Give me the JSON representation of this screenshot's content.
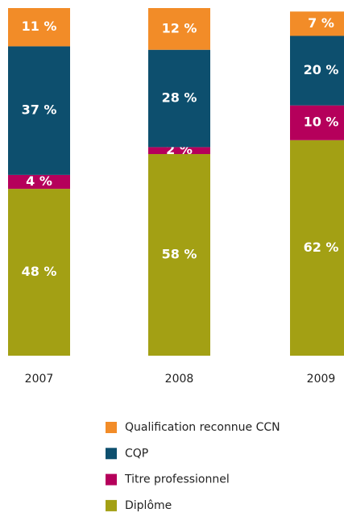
{
  "chart_data": {
    "type": "stacked_bar",
    "categories": [
      "2007",
      "2008",
      "2009"
    ],
    "ylim": [
      0,
      100
    ],
    "series": [
      {
        "name": "Qualification reconnue CCN",
        "color": "#f28c28",
        "values": [
          11,
          12,
          7
        ],
        "value_labels": [
          "11 %",
          "12 %",
          "7 %"
        ]
      },
      {
        "name": "CQP",
        "color": "#0d4f6e",
        "values": [
          37,
          28,
          20
        ],
        "value_labels": [
          "37 %",
          "28 %",
          "20 %"
        ]
      },
      {
        "name": "Titre professionnel",
        "color": "#b5005b",
        "values": [
          4,
          2,
          10
        ],
        "value_labels": [
          "4 %",
          "2 %",
          "10 %"
        ]
      },
      {
        "name": "Diplôme",
        "color": "#a3a014",
        "values": [
          48,
          58,
          62
        ],
        "value_labels": [
          "48 %",
          "58 %",
          "62 %"
        ]
      }
    ],
    "legend": "bottom"
  }
}
